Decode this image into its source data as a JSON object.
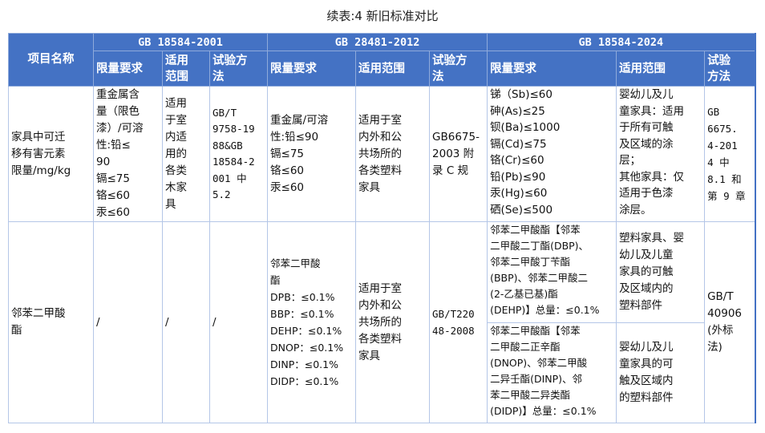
{
  "title": "续表:4 新旧标准对比",
  "colors": {
    "header_bg": "#4472c4",
    "border": "#b4c6e7"
  },
  "header": {
    "item_name": "项目名称",
    "groups": [
      "GB 18584-2001",
      "GB 28481-2012",
      "GB 18584-2024"
    ],
    "sub": {
      "g1": [
        "限量要求",
        "适用\n范围",
        "试验方\n法"
      ],
      "g2": [
        "限量要求",
        "适用范围",
        "试验方\n法"
      ],
      "g3": [
        "限量要求",
        "适用范围",
        "试验\n方法"
      ]
    }
  },
  "rows": [
    {
      "item": "家具中可迁\n移有害元素\n限量/mg/kg",
      "g1_limit": "重金属含\n量（限色\n漆）/可溶\n性:铅≤\n90\n镉≤75\n铬≤60\n汞≤60",
      "g1_scope": "适用\n于室\n内适\n用的\n各类\n木家\n具",
      "g1_method": "GB/T\n9758-19\n88&GB\n18584-2\n001 中\n5.2",
      "g2_limit": "重金属/可溶\n性:铅≤90\n镉≤75\n铬≤60\n汞≤60",
      "g2_scope": "适用于室\n内外和公\n共场所的\n各类塑料\n家具",
      "g2_method": "GB6675-\n2003 附\n录 C 规",
      "g3_limit": "锑（Sb)≤60\n砷(As)≤25\n钡(Ba)≤1000\n镉(Cd)≤75\n铬(Cr)≤60\n铅(Pb)≤90\n汞(Hg)≤60\n硒(Se)≤500",
      "g3_scope": "婴幼儿及儿\n童家具：适用\n于所有可触\n及区域的涂\n层；\n其他家具：仅\n适用于色漆\n涂层。",
      "g3_method": "GB\n6675.\n4-201\n4 中\n8.1 和\n第 9 章"
    },
    {
      "item": "邻苯二甲酸\n酯",
      "g1_limit": "/",
      "g1_scope": "/",
      "g1_method": "/",
      "g2_limit": "邻苯二甲酸\n酯\nDPB：≤0.1%\nBBP：≤0.1%\nDEHP：≤0.1%\nDNOP：≤0.1%\nDINP：≤0.1%\nDIDP：≤0.1%",
      "g2_scope": "适用于室\n内外和公\n共场所的\n各类塑料\n家具",
      "g2_method": "GB/T220\n48-2008",
      "g3_limit_a": "邻苯二甲酸酯【邻苯\n二甲酸二丁酯(DBP)、\n邻苯二甲酸丁苄酯\n(BBP)、邻苯二甲酸二\n(2-乙基已基)酯\n(DEHP)】总量：≤0.1%",
      "g3_scope_a": "塑料家具、婴\n幼儿及儿童\n家具的可触\n及区域内的\n塑料部件",
      "g3_limit_b": "邻苯二甲酸酯【邻苯\n二甲酸二正辛酯\n(DNOP)、邻苯二甲酸\n二异壬酯(DINP)、邻\n苯二甲酸二异类酯\n(DIDP)】总量：≤0.1%",
      "g3_scope_b": "婴幼儿及儿\n童家具的可\n触及区域内\n的塑料部件",
      "g3_method": "GB/T\n40906\n(外标\n法)"
    }
  ]
}
